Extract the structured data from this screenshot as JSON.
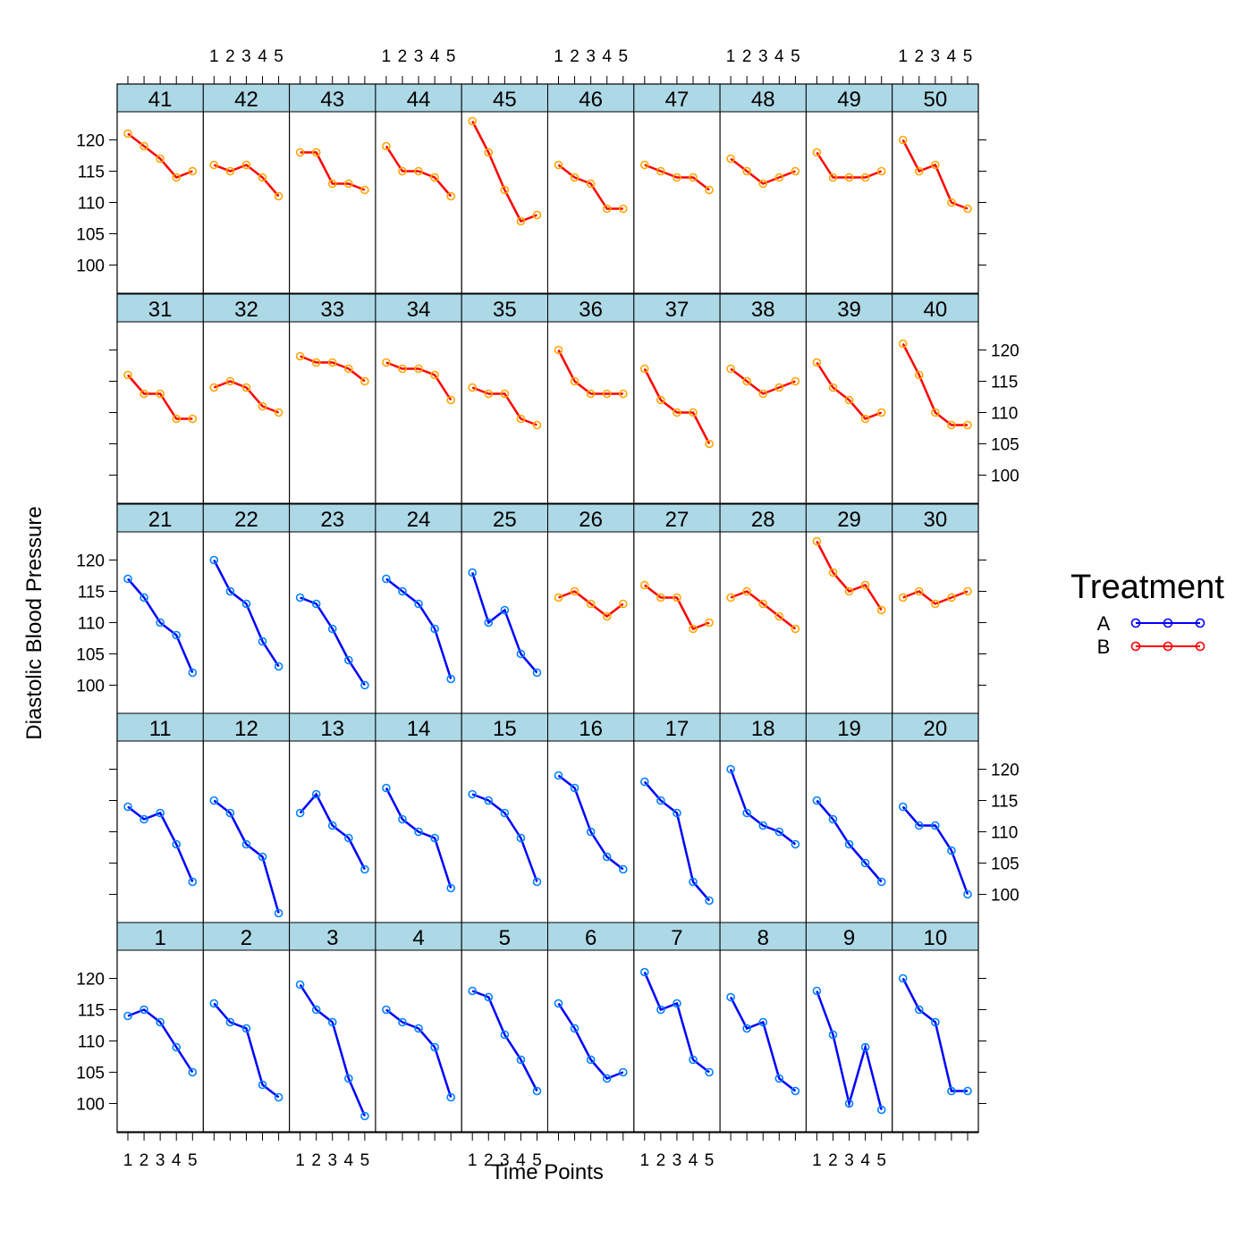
{
  "chart_data": {
    "type": "line",
    "layout": "trellis 10 columns x 5 rows",
    "xlabel": "Time Points",
    "ylabel": "Diastolic Blood Pressure",
    "x": [
      1,
      2,
      3,
      4,
      5
    ],
    "x_tick_labels": [
      "1",
      "2",
      "3",
      "4",
      "5"
    ],
    "y_ticks": [
      100,
      105,
      110,
      115,
      120
    ],
    "ylim": [
      95.5,
      124.5
    ],
    "legend": {
      "title": "Treatment",
      "position": "right",
      "entries": [
        {
          "label": "A",
          "color": "#0000ff"
        },
        {
          "label": "B",
          "color": "#ff0000"
        }
      ]
    },
    "colors": {
      "strip": "#add8e6",
      "point_border": "#0080ff",
      "point_border_b": "#ffa500",
      "line_a": "#0000ff",
      "line_b": "#ff0000"
    },
    "panels": [
      {
        "id": "1",
        "group": "A",
        "values": [
          114,
          115,
          113,
          109,
          105
        ]
      },
      {
        "id": "2",
        "group": "A",
        "values": [
          116,
          113,
          112,
          103,
          101
        ]
      },
      {
        "id": "3",
        "group": "A",
        "values": [
          119,
          115,
          113,
          104,
          98
        ]
      },
      {
        "id": "4",
        "group": "A",
        "values": [
          115,
          113,
          112,
          109,
          101
        ]
      },
      {
        "id": "5",
        "group": "A",
        "values": [
          118,
          117,
          111,
          107,
          102
        ]
      },
      {
        "id": "6",
        "group": "A",
        "values": [
          116,
          112,
          107,
          104,
          105
        ]
      },
      {
        "id": "7",
        "group": "A",
        "values": [
          121,
          115,
          116,
          107,
          105
        ]
      },
      {
        "id": "8",
        "group": "A",
        "values": [
          117,
          112,
          113,
          104,
          102
        ]
      },
      {
        "id": "9",
        "group": "A",
        "values": [
          118,
          111,
          100,
          109,
          99
        ]
      },
      {
        "id": "10",
        "group": "A",
        "values": [
          120,
          115,
          113,
          102,
          102
        ]
      },
      {
        "id": "11",
        "group": "A",
        "values": [
          114,
          112,
          113,
          108,
          102
        ]
      },
      {
        "id": "12",
        "group": "A",
        "values": [
          115,
          113,
          108,
          106,
          97
        ]
      },
      {
        "id": "13",
        "group": "A",
        "values": [
          113,
          116,
          111,
          109,
          104
        ]
      },
      {
        "id": "14",
        "group": "A",
        "values": [
          117,
          112,
          110,
          109,
          101
        ]
      },
      {
        "id": "15",
        "group": "A",
        "values": [
          116,
          115,
          113,
          109,
          102
        ]
      },
      {
        "id": "16",
        "group": "A",
        "values": [
          119,
          117,
          110,
          106,
          104
        ]
      },
      {
        "id": "17",
        "group": "A",
        "values": [
          118,
          115,
          113,
          102,
          99
        ]
      },
      {
        "id": "18",
        "group": "A",
        "values": [
          120,
          113,
          111,
          110,
          108
        ]
      },
      {
        "id": "19",
        "group": "A",
        "values": [
          115,
          112,
          108,
          105,
          102
        ]
      },
      {
        "id": "20",
        "group": "A",
        "values": [
          114,
          111,
          111,
          107,
          100
        ]
      },
      {
        "id": "21",
        "group": "A",
        "values": [
          117,
          114,
          110,
          108,
          102
        ]
      },
      {
        "id": "22",
        "group": "A",
        "values": [
          120,
          115,
          113,
          107,
          103
        ]
      },
      {
        "id": "23",
        "group": "A",
        "values": [
          114,
          113,
          109,
          104,
          100
        ]
      },
      {
        "id": "24",
        "group": "A",
        "values": [
          117,
          115,
          113,
          109,
          101
        ]
      },
      {
        "id": "25",
        "group": "A",
        "values": [
          118,
          110,
          112,
          105,
          102
        ]
      },
      {
        "id": "26",
        "group": "B",
        "values": [
          114,
          115,
          113,
          111,
          113
        ]
      },
      {
        "id": "27",
        "group": "B",
        "values": [
          116,
          114,
          114,
          109,
          110
        ]
      },
      {
        "id": "28",
        "group": "B",
        "values": [
          114,
          115,
          113,
          111,
          109
        ]
      },
      {
        "id": "29",
        "group": "B",
        "values": [
          123,
          118,
          115,
          116,
          112
        ]
      },
      {
        "id": "30",
        "group": "B",
        "values": [
          114,
          115,
          113,
          114,
          115
        ]
      },
      {
        "id": "31",
        "group": "B",
        "values": [
          116,
          113,
          113,
          109,
          109
        ]
      },
      {
        "id": "32",
        "group": "B",
        "values": [
          114,
          115,
          114,
          111,
          110
        ]
      },
      {
        "id": "33",
        "group": "B",
        "values": [
          119,
          118,
          118,
          117,
          115
        ]
      },
      {
        "id": "34",
        "group": "B",
        "values": [
          118,
          117,
          117,
          116,
          112
        ]
      },
      {
        "id": "35",
        "group": "B",
        "values": [
          114,
          113,
          113,
          109,
          108
        ]
      },
      {
        "id": "36",
        "group": "B",
        "values": [
          120,
          115,
          113,
          113,
          113
        ]
      },
      {
        "id": "37",
        "group": "B",
        "values": [
          117,
          112,
          110,
          110,
          105
        ]
      },
      {
        "id": "38",
        "group": "B",
        "values": [
          117,
          115,
          113,
          114,
          115
        ]
      },
      {
        "id": "39",
        "group": "B",
        "values": [
          118,
          114,
          112,
          109,
          110
        ]
      },
      {
        "id": "40",
        "group": "B",
        "values": [
          121,
          116,
          110,
          108,
          108
        ]
      },
      {
        "id": "41",
        "group": "B",
        "values": [
          121,
          119,
          117,
          114,
          115
        ]
      },
      {
        "id": "42",
        "group": "B",
        "values": [
          116,
          115,
          116,
          114,
          111
        ]
      },
      {
        "id": "43",
        "group": "B",
        "values": [
          118,
          118,
          113,
          113,
          112
        ]
      },
      {
        "id": "44",
        "group": "B",
        "values": [
          119,
          115,
          115,
          114,
          111
        ]
      },
      {
        "id": "45",
        "group": "B",
        "values": [
          123,
          118,
          112,
          107,
          108
        ]
      },
      {
        "id": "46",
        "group": "B",
        "values": [
          116,
          114,
          113,
          109,
          109
        ]
      },
      {
        "id": "47",
        "group": "B",
        "values": [
          116,
          115,
          114,
          114,
          112
        ]
      },
      {
        "id": "48",
        "group": "B",
        "values": [
          117,
          115,
          113,
          114,
          115
        ]
      },
      {
        "id": "49",
        "group": "B",
        "values": [
          118,
          114,
          114,
          114,
          115
        ]
      },
      {
        "id": "50",
        "group": "B",
        "values": [
          120,
          115,
          116,
          110,
          109
        ]
      }
    ]
  }
}
